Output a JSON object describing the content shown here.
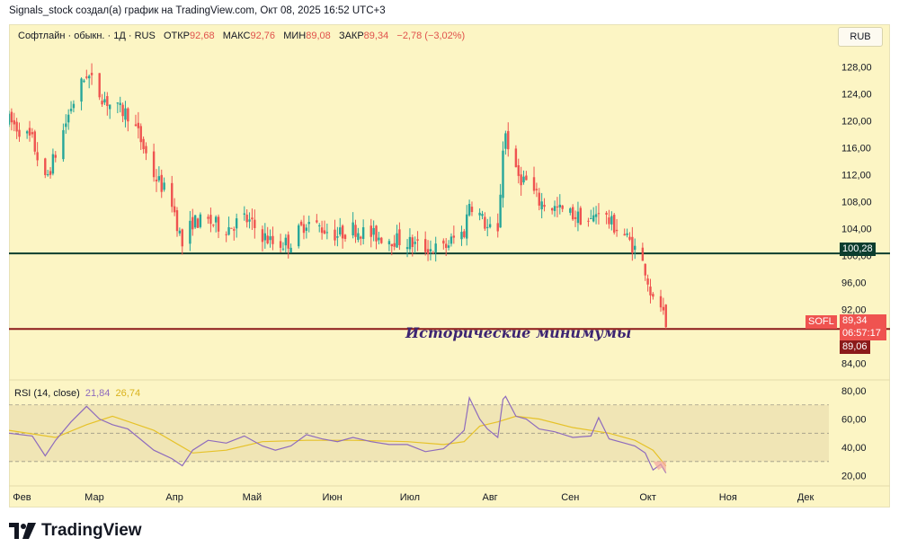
{
  "header": {
    "text": "Signals_stock создал(а) график на TradingView.com, Окт 08, 2025 16:52 UTC+3"
  },
  "legend": {
    "symbol": "Софтлайн · обыкн. · 1Д · RUS",
    "open_label": "ОТКР",
    "open": "92,68",
    "high_label": "МАКС",
    "high": "92,76",
    "low_label": "МИН",
    "low": "89,08",
    "close_label": "ЗАКР",
    "close": "89,34",
    "change": "−2,78 (−3,02%)"
  },
  "currency": "RUB",
  "annotation": "Исторические минимумы",
  "price_tags": {
    "resistance": "100,28",
    "ticker": "SOFL",
    "last": "89,34",
    "countdown": "06:57:17",
    "support": "89,06"
  },
  "rsi_legend": {
    "label": "RSI (14, close)",
    "rsi": "21,84",
    "ma": "26,74"
  },
  "brand": "TradingView",
  "colors": {
    "background": "#fcf5c4",
    "up": "#26a69a",
    "down": "#ef5350",
    "resistance": "#0b3d2e",
    "support": "#8b1a1a",
    "rsi": "#8e6bbd",
    "rsi_ma": "#e6c229"
  },
  "chart_data": [
    {
      "type": "candlestick",
      "title": "Софтлайн · обыкн. · 1Д · RUS",
      "y_ticks": [
        "84,00",
        "88,00",
        "92,00",
        "96,00",
        "100,00",
        "104,00",
        "108,00",
        "112,00",
        "116,00",
        "120,00",
        "124,00",
        "128,00"
      ],
      "y_tick_values": [
        84,
        88,
        92,
        96,
        100,
        104,
        108,
        112,
        116,
        120,
        124,
        128
      ],
      "ylim": [
        81.5,
        133.5
      ],
      "x_ticks": [
        "Фев",
        "Мар",
        "Апр",
        "Май",
        "Июн",
        "Июл",
        "Авг",
        "Сен",
        "Окт",
        "Ноя",
        "Дек"
      ],
      "x_tick_dates": [
        "2025-02-01",
        "2025-03-01",
        "2025-04-01",
        "2025-05-01",
        "2025-06-01",
        "2025-07-01",
        "2025-08-01",
        "2025-09-01",
        "2025-10-01",
        "2025-11-01",
        "2025-12-01"
      ],
      "x_range": [
        "2025-01-27",
        "2025-12-10"
      ],
      "levels": [
        {
          "value": 100.28,
          "label": "100,28",
          "color": "#0b3d2e"
        },
        {
          "value": 89.06,
          "label": "89,06",
          "color": "#8b1a1a"
        }
      ],
      "close_path": [
        {
          "date": "2025-01-27",
          "close": 120
        },
        {
          "date": "2025-02-05",
          "close": 117
        },
        {
          "date": "2025-02-10",
          "close": 111
        },
        {
          "date": "2025-02-14",
          "close": 115
        },
        {
          "date": "2025-02-20",
          "close": 122
        },
        {
          "date": "2025-02-26",
          "close": 127
        },
        {
          "date": "2025-03-03",
          "close": 124
        },
        {
          "date": "2025-03-08",
          "close": 122
        },
        {
          "date": "2025-03-14",
          "close": 121
        },
        {
          "date": "2025-03-18",
          "close": 118
        },
        {
          "date": "2025-03-24",
          "close": 112
        },
        {
          "date": "2025-03-31",
          "close": 108
        },
        {
          "date": "2025-04-04",
          "close": 101.5
        },
        {
          "date": "2025-04-08",
          "close": 105
        },
        {
          "date": "2025-04-14",
          "close": 105
        },
        {
          "date": "2025-04-21",
          "close": 104
        },
        {
          "date": "2025-04-28",
          "close": 105.5
        },
        {
          "date": "2025-05-05",
          "close": 103
        },
        {
          "date": "2025-05-10",
          "close": 101.5
        },
        {
          "date": "2025-05-16",
          "close": 102
        },
        {
          "date": "2025-05-22",
          "close": 105
        },
        {
          "date": "2025-05-28",
          "close": 104
        },
        {
          "date": "2025-06-03",
          "close": 103
        },
        {
          "date": "2025-06-09",
          "close": 104
        },
        {
          "date": "2025-06-16",
          "close": 103
        },
        {
          "date": "2025-06-23",
          "close": 102.5
        },
        {
          "date": "2025-06-30",
          "close": 102
        },
        {
          "date": "2025-07-07",
          "close": 101
        },
        {
          "date": "2025-07-14",
          "close": 101
        },
        {
          "date": "2025-07-18",
          "close": 102.5
        },
        {
          "date": "2025-07-22",
          "close": 103.5
        },
        {
          "date": "2025-07-24",
          "close": 108
        },
        {
          "date": "2025-07-28",
          "close": 106
        },
        {
          "date": "2025-07-31",
          "close": 104
        },
        {
          "date": "2025-08-04",
          "close": 103
        },
        {
          "date": "2025-08-06",
          "close": 116
        },
        {
          "date": "2025-08-07",
          "close": 118
        },
        {
          "date": "2025-08-11",
          "close": 112
        },
        {
          "date": "2025-08-15",
          "close": 111
        },
        {
          "date": "2025-08-20",
          "close": 108
        },
        {
          "date": "2025-08-26",
          "close": 107
        },
        {
          "date": "2025-09-02",
          "close": 106
        },
        {
          "date": "2025-09-09",
          "close": 105
        },
        {
          "date": "2025-09-12",
          "close": 107
        },
        {
          "date": "2025-09-16",
          "close": 105
        },
        {
          "date": "2025-09-22",
          "close": 103
        },
        {
          "date": "2025-09-26",
          "close": 101
        },
        {
          "date": "2025-09-30",
          "close": 98
        },
        {
          "date": "2025-10-03",
          "close": 93
        },
        {
          "date": "2025-10-06",
          "close": 92.5
        },
        {
          "date": "2025-10-08",
          "close": 89.34
        }
      ],
      "last_bar": {
        "date": "2025-10-08",
        "open": 92.68,
        "high": 92.76,
        "low": 89.08,
        "close": 89.34
      }
    },
    {
      "type": "line",
      "title": "RSI (14, close)",
      "y_ticks": [
        "20,00",
        "40,00",
        "60,00",
        "80,00"
      ],
      "y_tick_values": [
        20,
        40,
        60,
        80
      ],
      "ylim": [
        14,
        87
      ],
      "band": [
        30,
        70
      ],
      "series": [
        {
          "name": "RSI",
          "points": [
            {
              "date": "2025-01-27",
              "value": 50
            },
            {
              "date": "2025-02-05",
              "value": 48
            },
            {
              "date": "2025-02-10",
              "value": 34
            },
            {
              "date": "2025-02-14",
              "value": 45
            },
            {
              "date": "2025-02-20",
              "value": 58
            },
            {
              "date": "2025-02-26",
              "value": 69
            },
            {
              "date": "2025-03-03",
              "value": 60
            },
            {
              "date": "2025-03-08",
              "value": 56
            },
            {
              "date": "2025-03-14",
              "value": 53
            },
            {
              "date": "2025-03-18",
              "value": 47
            },
            {
              "date": "2025-03-24",
              "value": 38
            },
            {
              "date": "2025-03-31",
              "value": 32
            },
            {
              "date": "2025-04-04",
              "value": 27
            },
            {
              "date": "2025-04-08",
              "value": 38
            },
            {
              "date": "2025-04-14",
              "value": 45
            },
            {
              "date": "2025-04-21",
              "value": 43
            },
            {
              "date": "2025-04-28",
              "value": 48
            },
            {
              "date": "2025-05-05",
              "value": 41
            },
            {
              "date": "2025-05-10",
              "value": 38
            },
            {
              "date": "2025-05-16",
              "value": 41
            },
            {
              "date": "2025-05-22",
              "value": 49
            },
            {
              "date": "2025-05-28",
              "value": 46
            },
            {
              "date": "2025-06-03",
              "value": 44
            },
            {
              "date": "2025-06-09",
              "value": 47
            },
            {
              "date": "2025-06-16",
              "value": 44
            },
            {
              "date": "2025-06-23",
              "value": 42
            },
            {
              "date": "2025-06-30",
              "value": 42
            },
            {
              "date": "2025-07-07",
              "value": 37
            },
            {
              "date": "2025-07-14",
              "value": 39
            },
            {
              "date": "2025-07-18",
              "value": 45
            },
            {
              "date": "2025-07-22",
              "value": 52
            },
            {
              "date": "2025-07-24",
              "value": 75
            },
            {
              "date": "2025-07-28",
              "value": 60
            },
            {
              "date": "2025-07-31",
              "value": 53
            },
            {
              "date": "2025-08-04",
              "value": 47
            },
            {
              "date": "2025-08-06",
              "value": 74
            },
            {
              "date": "2025-08-07",
              "value": 76
            },
            {
              "date": "2025-08-11",
              "value": 62
            },
            {
              "date": "2025-08-15",
              "value": 60
            },
            {
              "date": "2025-08-20",
              "value": 53
            },
            {
              "date": "2025-08-26",
              "value": 51
            },
            {
              "date": "2025-09-02",
              "value": 47
            },
            {
              "date": "2025-09-09",
              "value": 48
            },
            {
              "date": "2025-09-12",
              "value": 61
            },
            {
              "date": "2025-09-16",
              "value": 46
            },
            {
              "date": "2025-09-22",
              "value": 43
            },
            {
              "date": "2025-09-26",
              "value": 41
            },
            {
              "date": "2025-09-30",
              "value": 36
            },
            {
              "date": "2025-10-03",
              "value": 24
            },
            {
              "date": "2025-10-06",
              "value": 28
            },
            {
              "date": "2025-10-08",
              "value": 21.84
            }
          ]
        },
        {
          "name": "MA",
          "points": [
            {
              "date": "2025-01-27",
              "value": 52
            },
            {
              "date": "2025-02-14",
              "value": 47
            },
            {
              "date": "2025-02-26",
              "value": 56
            },
            {
              "date": "2025-03-08",
              "value": 62
            },
            {
              "date": "2025-03-24",
              "value": 52
            },
            {
              "date": "2025-04-08",
              "value": 36
            },
            {
              "date": "2025-04-21",
              "value": 38
            },
            {
              "date": "2025-05-05",
              "value": 44
            },
            {
              "date": "2025-05-22",
              "value": 45
            },
            {
              "date": "2025-06-09",
              "value": 45
            },
            {
              "date": "2025-06-30",
              "value": 44
            },
            {
              "date": "2025-07-14",
              "value": 42
            },
            {
              "date": "2025-07-22",
              "value": 44
            },
            {
              "date": "2025-07-28",
              "value": 55
            },
            {
              "date": "2025-08-04",
              "value": 58
            },
            {
              "date": "2025-08-11",
              "value": 62
            },
            {
              "date": "2025-08-20",
              "value": 60
            },
            {
              "date": "2025-09-02",
              "value": 54
            },
            {
              "date": "2025-09-16",
              "value": 50
            },
            {
              "date": "2025-09-26",
              "value": 45
            },
            {
              "date": "2025-10-03",
              "value": 38
            },
            {
              "date": "2025-10-08",
              "value": 26.74
            }
          ]
        }
      ]
    }
  ]
}
